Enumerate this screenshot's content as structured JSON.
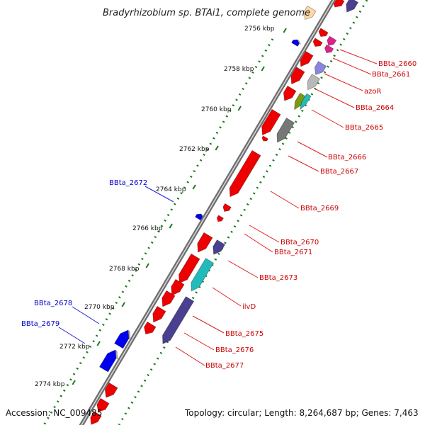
{
  "title": "Bradyrhizobium sp. BTAi1, complete genome",
  "footer": {
    "accession": "Accession: NC_009485",
    "topology": "Topology: circular; Length: 8,264,687 bp; Genes: 7,463"
  },
  "ticks": [
    {
      "label": "2756 kbp"
    },
    {
      "label": "2758 kbp"
    },
    {
      "label": "2760 kbp"
    },
    {
      "label": "2762 kbp"
    },
    {
      "label": "2764 kbp"
    },
    {
      "label": "2766 kbp"
    },
    {
      "label": "2768 kbp"
    },
    {
      "label": "2770 kbp"
    },
    {
      "label": "2772 kbp"
    },
    {
      "label": "2774 kbp"
    }
  ],
  "gene_labels": [
    {
      "id": "BBta_2660",
      "color": "#cc0000"
    },
    {
      "id": "BBta_2661",
      "color": "#cc0000"
    },
    {
      "id": "azoR",
      "color": "#cc0000"
    },
    {
      "id": "BBta_2664",
      "color": "#cc0000"
    },
    {
      "id": "BBta_2665",
      "color": "#cc0000"
    },
    {
      "id": "BBta_2666",
      "color": "#cc0000"
    },
    {
      "id": "BBta_2667",
      "color": "#cc0000"
    },
    {
      "id": "BBta_2669",
      "color": "#cc0000"
    },
    {
      "id": "BBta_2670",
      "color": "#cc0000"
    },
    {
      "id": "BBta_2671",
      "color": "#cc0000"
    },
    {
      "id": "BBta_2673",
      "color": "#cc0000"
    },
    {
      "id": "ilvD",
      "color": "#cc0000"
    },
    {
      "id": "BBta_2675",
      "color": "#cc0000"
    },
    {
      "id": "BBta_2676",
      "color": "#cc0000"
    },
    {
      "id": "BBta_2677",
      "color": "#cc0000"
    },
    {
      "id": "BBta_2672",
      "color": "#0000cc"
    },
    {
      "id": "BBta_2678",
      "color": "#0000cc"
    },
    {
      "id": "BBta_2679",
      "color": "#0000cc"
    }
  ],
  "colors": {
    "forward_gene": "#ee0000",
    "reverse_gene": "#0000ee",
    "backbone": "#8a8a8a",
    "tick_marks": "#1a7a1a",
    "purple_gene": "#4a4090",
    "cyan_gene": "#22bbbb",
    "gray_gene": "#777777",
    "pink_gene": "#e0208a",
    "lavender_gene": "#8a86dd",
    "silver_gene": "#b8b8b8",
    "olive_gene": "#7a9a10",
    "peach_gene": "#ffd8a8"
  }
}
